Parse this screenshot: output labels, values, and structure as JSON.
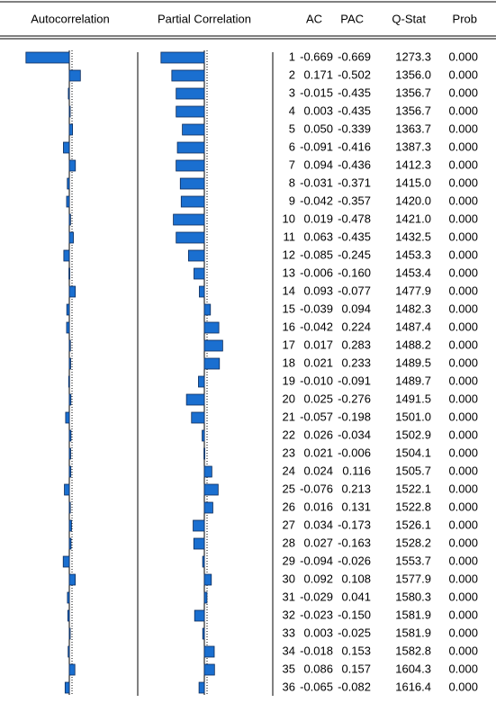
{
  "table": {
    "header": [
      "Autocorrelation",
      "Partial Correlation",
      "AC",
      "PAC",
      "Q-Stat",
      "Prob"
    ],
    "rows": [
      [
        "1",
        "-0.669",
        "-0.669",
        "1273.3",
        "0.000"
      ],
      [
        "2",
        "0.171",
        "-0.502",
        "1356.0",
        "0.000"
      ],
      [
        "3",
        "-0.015",
        "-0.435",
        "1356.7",
        "0.000"
      ],
      [
        "4",
        "0.003",
        "-0.435",
        "1356.7",
        "0.000"
      ],
      [
        "5",
        "0.050",
        "-0.339",
        "1363.7",
        "0.000"
      ],
      [
        "6",
        "-0.091",
        "-0.416",
        "1387.3",
        "0.000"
      ],
      [
        "7",
        "0.094",
        "-0.436",
        "1412.3",
        "0.000"
      ],
      [
        "8",
        "-0.031",
        "-0.371",
        "1415.0",
        "0.000"
      ],
      [
        "9",
        "-0.042",
        "-0.357",
        "1420.0",
        "0.000"
      ],
      [
        "10",
        "0.019",
        "-0.478",
        "1421.0",
        "0.000"
      ],
      [
        "11",
        "0.063",
        "-0.435",
        "1432.5",
        "0.000"
      ],
      [
        "12",
        "-0.085",
        "-0.245",
        "1453.3",
        "0.000"
      ],
      [
        "13",
        "-0.006",
        "-0.160",
        "1453.4",
        "0.000"
      ],
      [
        "14",
        "0.093",
        "-0.077",
        "1477.9",
        "0.000"
      ],
      [
        "15",
        "-0.039",
        "0.094",
        "1482.3",
        "0.000"
      ],
      [
        "16",
        "-0.042",
        "0.224",
        "1487.4",
        "0.000"
      ],
      [
        "17",
        "0.017",
        "0.283",
        "1488.2",
        "0.000"
      ],
      [
        "18",
        "0.021",
        "0.233",
        "1489.5",
        "0.000"
      ],
      [
        "19",
        "-0.010",
        "-0.091",
        "1489.7",
        "0.000"
      ],
      [
        "20",
        "0.025",
        "-0.276",
        "1491.5",
        "0.000"
      ],
      [
        "21",
        "-0.057",
        "-0.198",
        "1501.0",
        "0.000"
      ],
      [
        "22",
        "0.026",
        "-0.034",
        "1502.9",
        "0.000"
      ],
      [
        "23",
        "0.021",
        "-0.006",
        "1504.1",
        "0.000"
      ],
      [
        "24",
        "0.024",
        "0.116",
        "1505.7",
        "0.000"
      ],
      [
        "25",
        "-0.076",
        "0.213",
        "1522.1",
        "0.000"
      ],
      [
        "26",
        "0.016",
        "0.131",
        "1522.8",
        "0.000"
      ],
      [
        "27",
        "0.034",
        "-0.173",
        "1526.1",
        "0.000"
      ],
      [
        "28",
        "0.027",
        "-0.163",
        "1528.2",
        "0.000"
      ],
      [
        "29",
        "-0.094",
        "-0.026",
        "1553.7",
        "0.000"
      ],
      [
        "30",
        "0.092",
        "0.108",
        "1577.9",
        "0.000"
      ],
      [
        "31",
        "-0.029",
        "0.041",
        "1580.3",
        "0.000"
      ],
      [
        "32",
        "-0.023",
        "-0.150",
        "1581.9",
        "0.000"
      ],
      [
        "33",
        "0.003",
        "-0.025",
        "1581.9",
        "0.000"
      ],
      [
        "34",
        "-0.018",
        "0.153",
        "1582.8",
        "0.000"
      ],
      [
        "35",
        "0.086",
        "0.157",
        "1604.3",
        "0.000"
      ],
      [
        "36",
        "-0.065",
        "-0.082",
        "1616.4",
        "0.000"
      ]
    ]
  }
}
